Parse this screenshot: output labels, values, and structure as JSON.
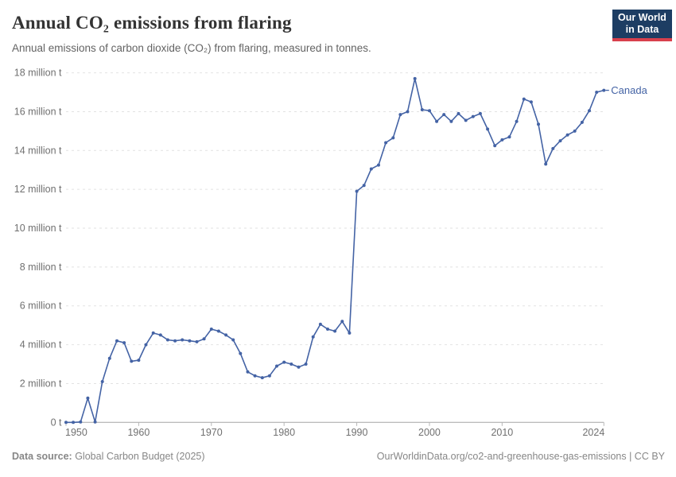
{
  "logo": {
    "line1": "Our World",
    "line2": "in Data"
  },
  "colors": {
    "line": "#4463a5",
    "entity_label": "#4463a5",
    "logo_background": "#1d3d63",
    "logo_red_bar": "#d8404d",
    "gridline": "#e2e2e2",
    "axis_line": "#a5a5a5",
    "tick_mark": "#b8b8b8",
    "axis_text": "#707070"
  },
  "footer": {
    "source_label": "Data source:",
    "source_value": " Global Carbon Budget (2025)",
    "right_text": "OurWorldinData.org/co2-and-greenhouse-gas-emissions | CC BY"
  },
  "chart_data": {
    "type": "line",
    "title": "Annual CO₂ emissions from flaring",
    "subtitle": "Annual emissions of carbon dioxide (CO₂) from flaring, measured in tonnes.",
    "xlabel": "",
    "ylabel": "",
    "unit": "million tonnes",
    "grid": true,
    "legend": "end-label",
    "xlim": [
      1950,
      2024
    ],
    "ylim": [
      0,
      18
    ],
    "x_ticks": [
      1950,
      1960,
      1970,
      1980,
      1990,
      2000,
      2010,
      2024
    ],
    "y_ticks": [
      0,
      2,
      4,
      6,
      8,
      10,
      12,
      14,
      16,
      18
    ],
    "y_tick_labels": [
      "0 t",
      "2 million t",
      "4 million t",
      "6 million t",
      "8 million t",
      "10 million t",
      "12 million t",
      "14 million t",
      "16 million t",
      "18 million t"
    ],
    "x": [
      1950,
      1951,
      1952,
      1953,
      1954,
      1955,
      1956,
      1957,
      1958,
      1959,
      1960,
      1961,
      1962,
      1963,
      1964,
      1965,
      1966,
      1967,
      1968,
      1969,
      1970,
      1971,
      1972,
      1973,
      1974,
      1975,
      1976,
      1977,
      1978,
      1979,
      1980,
      1981,
      1982,
      1983,
      1984,
      1985,
      1986,
      1987,
      1988,
      1989,
      1990,
      1991,
      1992,
      1993,
      1994,
      1995,
      1996,
      1997,
      1998,
      1999,
      2000,
      2001,
      2002,
      2003,
      2004,
      2005,
      2006,
      2007,
      2008,
      2009,
      2010,
      2011,
      2012,
      2013,
      2014,
      2015,
      2016,
      2017,
      2018,
      2019,
      2020,
      2021,
      2022,
      2023,
      2024
    ],
    "series": [
      {
        "name": "Canada",
        "color": "#4463a5",
        "values": [
          0,
          0,
          0.02,
          1.25,
          0.02,
          2.1,
          3.3,
          4.2,
          4.1,
          3.15,
          3.2,
          4.0,
          4.6,
          4.5,
          4.25,
          4.2,
          4.25,
          4.2,
          4.15,
          4.3,
          4.8,
          4.7,
          4.5,
          4.25,
          3.55,
          2.6,
          2.4,
          2.3,
          2.4,
          2.9,
          3.1,
          3.0,
          2.85,
          3.0,
          4.4,
          5.05,
          4.8,
          4.7,
          5.2,
          4.6,
          11.9,
          12.2,
          13.05,
          13.25,
          14.4,
          14.65,
          15.85,
          16.0,
          17.7,
          16.1,
          16.05,
          15.5,
          15.85,
          15.5,
          15.9,
          15.55,
          15.75,
          15.9,
          15.1,
          14.25,
          14.55,
          14.7,
          15.5,
          16.65,
          16.5,
          15.35,
          13.3,
          14.1,
          14.5,
          14.8,
          15.0,
          15.45,
          16.05,
          17.0,
          17.1
        ]
      }
    ]
  }
}
